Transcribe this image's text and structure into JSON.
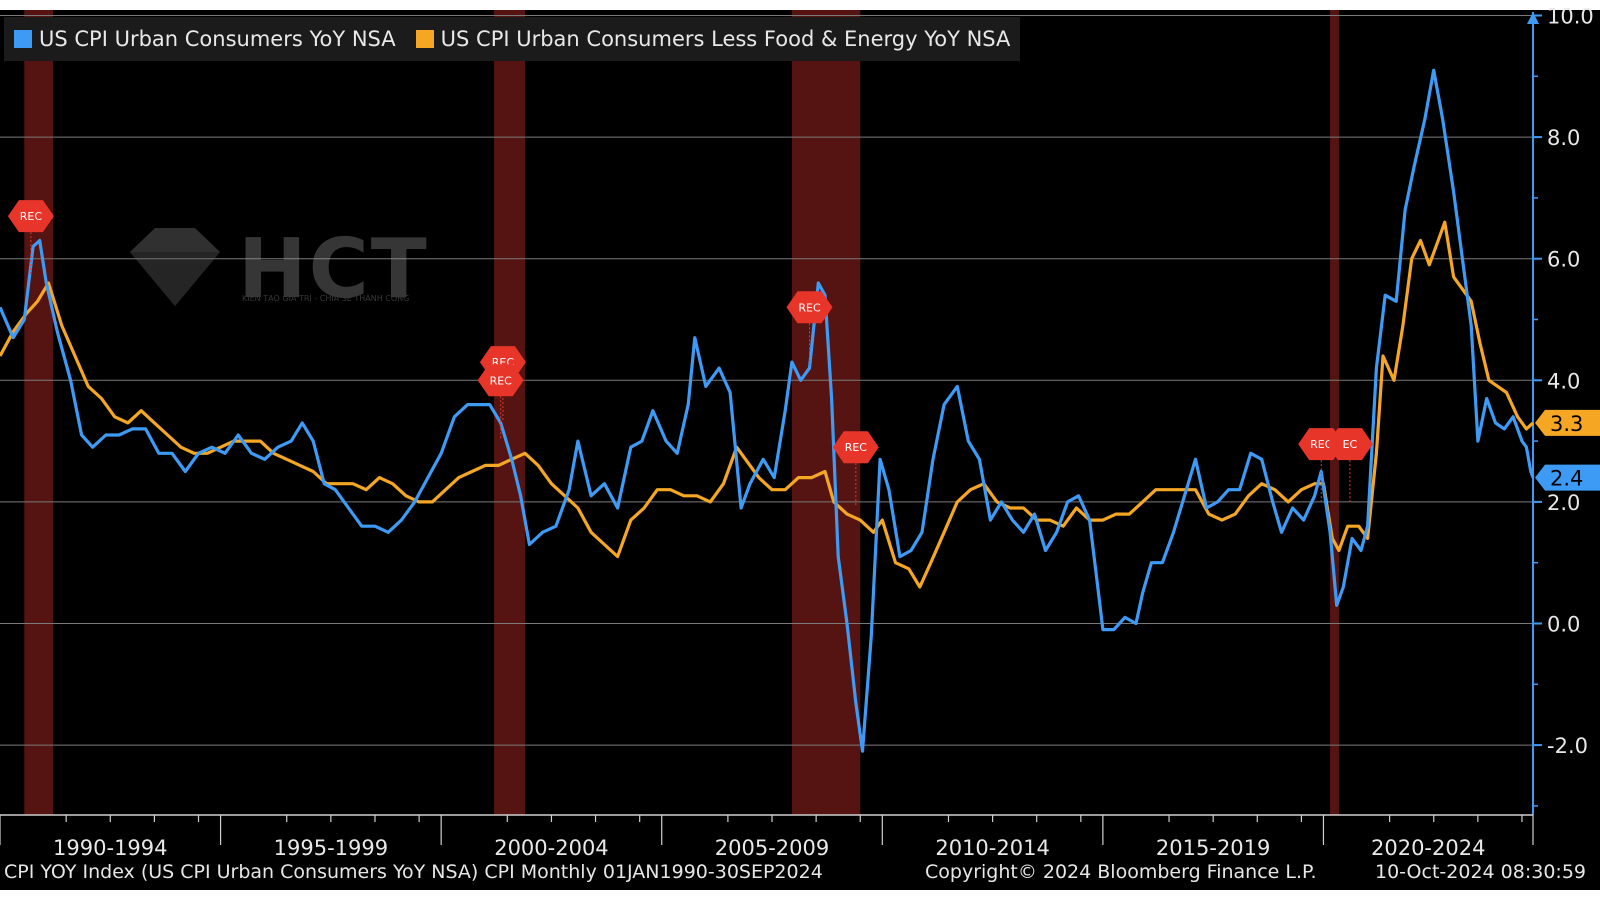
{
  "chart_data": {
    "type": "line",
    "title": "",
    "legend_position": "top-left",
    "x_labels": [
      "1990-1994",
      "1995-1999",
      "2000-2004",
      "2005-2009",
      "2010-2014",
      "2015-2019",
      "2020-2024"
    ],
    "xlim": [
      1990.0,
      2024.75
    ],
    "ylim": [
      -3.2,
      10.3
    ],
    "y_ticks": [
      -2.0,
      0.0,
      2.0,
      4.0,
      6.0,
      8.0,
      10.0
    ],
    "grid": true,
    "series": [
      {
        "name": "US CPI Urban Consumers YoY NSA",
        "color": "#3d9bf5",
        "last_value": "2.4",
        "points": [
          [
            1990.0,
            5.2
          ],
          [
            1990.3,
            4.7
          ],
          [
            1990.55,
            5.0
          ],
          [
            1990.75,
            6.2
          ],
          [
            1990.9,
            6.3
          ],
          [
            1991.05,
            5.6
          ],
          [
            1991.3,
            4.8
          ],
          [
            1991.6,
            4.0
          ],
          [
            1991.85,
            3.1
          ],
          [
            1992.1,
            2.9
          ],
          [
            1992.4,
            3.1
          ],
          [
            1992.7,
            3.1
          ],
          [
            1993.0,
            3.2
          ],
          [
            1993.3,
            3.2
          ],
          [
            1993.6,
            2.8
          ],
          [
            1993.9,
            2.8
          ],
          [
            1994.2,
            2.5
          ],
          [
            1994.5,
            2.8
          ],
          [
            1994.8,
            2.9
          ],
          [
            1995.1,
            2.8
          ],
          [
            1995.4,
            3.1
          ],
          [
            1995.7,
            2.8
          ],
          [
            1996.0,
            2.7
          ],
          [
            1996.3,
            2.9
          ],
          [
            1996.6,
            3.0
          ],
          [
            1996.85,
            3.3
          ],
          [
            1997.1,
            3.0
          ],
          [
            1997.35,
            2.3
          ],
          [
            1997.6,
            2.2
          ],
          [
            1997.9,
            1.9
          ],
          [
            1998.2,
            1.6
          ],
          [
            1998.5,
            1.6
          ],
          [
            1998.8,
            1.5
          ],
          [
            1999.1,
            1.7
          ],
          [
            1999.4,
            2.0
          ],
          [
            1999.7,
            2.4
          ],
          [
            2000.0,
            2.8
          ],
          [
            2000.3,
            3.4
          ],
          [
            2000.6,
            3.6
          ],
          [
            2000.9,
            3.6
          ],
          [
            2001.1,
            3.6
          ],
          [
            2001.35,
            3.3
          ],
          [
            2001.6,
            2.7
          ],
          [
            2001.8,
            2.1
          ],
          [
            2002.0,
            1.3
          ],
          [
            2002.3,
            1.5
          ],
          [
            2002.6,
            1.6
          ],
          [
            2002.9,
            2.2
          ],
          [
            2003.1,
            3.0
          ],
          [
            2003.4,
            2.1
          ],
          [
            2003.7,
            2.3
          ],
          [
            2004.0,
            1.9
          ],
          [
            2004.3,
            2.9
          ],
          [
            2004.55,
            3.0
          ],
          [
            2004.8,
            3.5
          ],
          [
            2005.1,
            3.0
          ],
          [
            2005.35,
            2.8
          ],
          [
            2005.6,
            3.6
          ],
          [
            2005.75,
            4.7
          ],
          [
            2006.0,
            3.9
          ],
          [
            2006.3,
            4.2
          ],
          [
            2006.55,
            3.8
          ],
          [
            2006.8,
            1.9
          ],
          [
            2007.0,
            2.3
          ],
          [
            2007.3,
            2.7
          ],
          [
            2007.55,
            2.4
          ],
          [
            2007.8,
            3.5
          ],
          [
            2007.95,
            4.3
          ],
          [
            2008.15,
            4.0
          ],
          [
            2008.35,
            4.2
          ],
          [
            2008.55,
            5.6
          ],
          [
            2008.7,
            5.4
          ],
          [
            2008.85,
            3.7
          ],
          [
            2009.0,
            1.1
          ],
          [
            2009.2,
            0.0
          ],
          [
            2009.4,
            -1.3
          ],
          [
            2009.55,
            -2.1
          ],
          [
            2009.75,
            -0.2
          ],
          [
            2009.95,
            2.7
          ],
          [
            2010.15,
            2.2
          ],
          [
            2010.4,
            1.1
          ],
          [
            2010.65,
            1.2
          ],
          [
            2010.9,
            1.5
          ],
          [
            2011.15,
            2.7
          ],
          [
            2011.4,
            3.6
          ],
          [
            2011.7,
            3.9
          ],
          [
            2011.95,
            3.0
          ],
          [
            2012.2,
            2.7
          ],
          [
            2012.45,
            1.7
          ],
          [
            2012.7,
            2.0
          ],
          [
            2012.95,
            1.7
          ],
          [
            2013.2,
            1.5
          ],
          [
            2013.45,
            1.8
          ],
          [
            2013.7,
            1.2
          ],
          [
            2013.95,
            1.5
          ],
          [
            2014.2,
            2.0
          ],
          [
            2014.45,
            2.1
          ],
          [
            2014.7,
            1.7
          ],
          [
            2014.85,
            0.8
          ],
          [
            2015.0,
            -0.1
          ],
          [
            2015.25,
            -0.1
          ],
          [
            2015.5,
            0.1
          ],
          [
            2015.75,
            0.0
          ],
          [
            2015.9,
            0.5
          ],
          [
            2016.1,
            1.0
          ],
          [
            2016.35,
            1.0
          ],
          [
            2016.6,
            1.5
          ],
          [
            2016.85,
            2.1
          ],
          [
            2017.1,
            2.7
          ],
          [
            2017.35,
            1.9
          ],
          [
            2017.6,
            2.0
          ],
          [
            2017.85,
            2.2
          ],
          [
            2018.1,
            2.2
          ],
          [
            2018.35,
            2.8
          ],
          [
            2018.6,
            2.7
          ],
          [
            2018.85,
            2.0
          ],
          [
            2019.05,
            1.5
          ],
          [
            2019.3,
            1.9
          ],
          [
            2019.55,
            1.7
          ],
          [
            2019.8,
            2.1
          ],
          [
            2019.95,
            2.5
          ],
          [
            2020.15,
            1.5
          ],
          [
            2020.3,
            0.3
          ],
          [
            2020.45,
            0.6
          ],
          [
            2020.65,
            1.4
          ],
          [
            2020.85,
            1.2
          ],
          [
            2021.0,
            1.6
          ],
          [
            2021.2,
            4.2
          ],
          [
            2021.4,
            5.4
          ],
          [
            2021.65,
            5.3
          ],
          [
            2021.85,
            6.8
          ],
          [
            2022.05,
            7.5
          ],
          [
            2022.3,
            8.3
          ],
          [
            2022.5,
            9.1
          ],
          [
            2022.7,
            8.3
          ],
          [
            2022.95,
            7.1
          ],
          [
            2023.15,
            6.0
          ],
          [
            2023.35,
            4.9
          ],
          [
            2023.5,
            3.0
          ],
          [
            2023.7,
            3.7
          ],
          [
            2023.9,
            3.3
          ],
          [
            2024.1,
            3.2
          ],
          [
            2024.3,
            3.4
          ],
          [
            2024.5,
            3.0
          ],
          [
            2024.6,
            2.9
          ],
          [
            2024.7,
            2.5
          ],
          [
            2024.75,
            2.4
          ]
        ]
      },
      {
        "name": "US CPI Urban Consumers Less Food & Energy YoY NSA",
        "color": "#f5a623",
        "last_value": "3.3",
        "points": [
          [
            1990.0,
            4.4
          ],
          [
            1990.3,
            4.8
          ],
          [
            1990.6,
            5.1
          ],
          [
            1990.85,
            5.3
          ],
          [
            1991.1,
            5.6
          ],
          [
            1991.4,
            4.9
          ],
          [
            1991.7,
            4.4
          ],
          [
            1992.0,
            3.9
          ],
          [
            1992.3,
            3.7
          ],
          [
            1992.6,
            3.4
          ],
          [
            1992.9,
            3.3
          ],
          [
            1993.2,
            3.5
          ],
          [
            1993.5,
            3.3
          ],
          [
            1993.8,
            3.1
          ],
          [
            1994.1,
            2.9
          ],
          [
            1994.4,
            2.8
          ],
          [
            1994.7,
            2.8
          ],
          [
            1995.0,
            2.9
          ],
          [
            1995.3,
            3.0
          ],
          [
            1995.6,
            3.0
          ],
          [
            1995.9,
            3.0
          ],
          [
            1996.2,
            2.8
          ],
          [
            1996.5,
            2.7
          ],
          [
            1996.8,
            2.6
          ],
          [
            1997.1,
            2.5
          ],
          [
            1997.4,
            2.3
          ],
          [
            1997.7,
            2.3
          ],
          [
            1998.0,
            2.3
          ],
          [
            1998.3,
            2.2
          ],
          [
            1998.6,
            2.4
          ],
          [
            1998.9,
            2.3
          ],
          [
            1999.2,
            2.1
          ],
          [
            1999.5,
            2.0
          ],
          [
            1999.8,
            2.0
          ],
          [
            2000.1,
            2.2
          ],
          [
            2000.4,
            2.4
          ],
          [
            2000.7,
            2.5
          ],
          [
            2001.0,
            2.6
          ],
          [
            2001.3,
            2.6
          ],
          [
            2001.6,
            2.7
          ],
          [
            2001.9,
            2.8
          ],
          [
            2002.2,
            2.6
          ],
          [
            2002.5,
            2.3
          ],
          [
            2002.8,
            2.1
          ],
          [
            2003.1,
            1.9
          ],
          [
            2003.4,
            1.5
          ],
          [
            2003.7,
            1.3
          ],
          [
            2004.0,
            1.1
          ],
          [
            2004.3,
            1.7
          ],
          [
            2004.6,
            1.9
          ],
          [
            2004.9,
            2.2
          ],
          [
            2005.2,
            2.2
          ],
          [
            2005.5,
            2.1
          ],
          [
            2005.8,
            2.1
          ],
          [
            2006.1,
            2.0
          ],
          [
            2006.4,
            2.3
          ],
          [
            2006.7,
            2.9
          ],
          [
            2006.9,
            2.7
          ],
          [
            2007.2,
            2.4
          ],
          [
            2007.5,
            2.2
          ],
          [
            2007.8,
            2.2
          ],
          [
            2008.1,
            2.4
          ],
          [
            2008.4,
            2.4
          ],
          [
            2008.7,
            2.5
          ],
          [
            2008.9,
            2.0
          ],
          [
            2009.2,
            1.8
          ],
          [
            2009.5,
            1.7
          ],
          [
            2009.8,
            1.5
          ],
          [
            2010.0,
            1.7
          ],
          [
            2010.3,
            1.0
          ],
          [
            2010.6,
            0.9
          ],
          [
            2010.85,
            0.6
          ],
          [
            2011.1,
            1.0
          ],
          [
            2011.4,
            1.5
          ],
          [
            2011.7,
            2.0
          ],
          [
            2012.0,
            2.2
          ],
          [
            2012.3,
            2.3
          ],
          [
            2012.6,
            2.0
          ],
          [
            2012.9,
            1.9
          ],
          [
            2013.2,
            1.9
          ],
          [
            2013.5,
            1.7
          ],
          [
            2013.8,
            1.7
          ],
          [
            2014.1,
            1.6
          ],
          [
            2014.4,
            1.9
          ],
          [
            2014.7,
            1.7
          ],
          [
            2015.0,
            1.7
          ],
          [
            2015.3,
            1.8
          ],
          [
            2015.6,
            1.8
          ],
          [
            2015.9,
            2.0
          ],
          [
            2016.2,
            2.2
          ],
          [
            2016.5,
            2.2
          ],
          [
            2016.8,
            2.2
          ],
          [
            2017.1,
            2.2
          ],
          [
            2017.4,
            1.8
          ],
          [
            2017.7,
            1.7
          ],
          [
            2018.0,
            1.8
          ],
          [
            2018.3,
            2.1
          ],
          [
            2018.6,
            2.3
          ],
          [
            2018.9,
            2.2
          ],
          [
            2019.2,
            2.0
          ],
          [
            2019.5,
            2.2
          ],
          [
            2019.8,
            2.3
          ],
          [
            2020.0,
            2.3
          ],
          [
            2020.2,
            1.4
          ],
          [
            2020.35,
            1.2
          ],
          [
            2020.55,
            1.6
          ],
          [
            2020.8,
            1.6
          ],
          [
            2021.0,
            1.4
          ],
          [
            2021.2,
            2.8
          ],
          [
            2021.35,
            4.4
          ],
          [
            2021.6,
            4.0
          ],
          [
            2021.8,
            4.9
          ],
          [
            2022.0,
            6.0
          ],
          [
            2022.2,
            6.3
          ],
          [
            2022.4,
            5.9
          ],
          [
            2022.6,
            6.3
          ],
          [
            2022.75,
            6.6
          ],
          [
            2022.95,
            5.7
          ],
          [
            2023.15,
            5.5
          ],
          [
            2023.35,
            5.3
          ],
          [
            2023.55,
            4.6
          ],
          [
            2023.75,
            4.0
          ],
          [
            2023.95,
            3.9
          ],
          [
            2024.15,
            3.8
          ],
          [
            2024.4,
            3.4
          ],
          [
            2024.6,
            3.2
          ],
          [
            2024.75,
            3.3
          ]
        ]
      }
    ],
    "recessions": [
      {
        "start": 1990.55,
        "end": 1991.2,
        "label": "REC"
      },
      {
        "start": 2001.2,
        "end": 2001.9,
        "label": "REC"
      },
      {
        "start": 2007.95,
        "end": 2009.5,
        "label": "REC"
      },
      {
        "start": 2020.15,
        "end": 2020.35,
        "label": "REC"
      }
    ],
    "rec_badges": [
      {
        "x": 1990.7,
        "y": 6.7,
        "label": "REC"
      },
      {
        "x": 2001.4,
        "y": 4.3,
        "label": "REC"
      },
      {
        "x": 2001.35,
        "y": 4.0,
        "label": "REC"
      },
      {
        "x": 2008.35,
        "y": 5.2,
        "label": "REC"
      },
      {
        "x": 2009.4,
        "y": 2.9,
        "label": "REC"
      },
      {
        "x": 2019.95,
        "y": 2.95,
        "label": "REC"
      },
      {
        "x": 2020.6,
        "y": 2.95,
        "label": "EC"
      }
    ]
  },
  "footer": {
    "left": "CPI YOY Index (US CPI Urban Consumers YoY NSA) CPI  Monthly 01JAN1990-30SEP2024",
    "center": "Copyright© 2024 Bloomberg Finance L.P.",
    "right": "10-Oct-2024 08:30:59"
  },
  "watermark": {
    "brand": "HCT",
    "tagline": "KIẾN TẠO GIÁ TRỊ - CHIA SẺ THÀNH CÔNG"
  }
}
